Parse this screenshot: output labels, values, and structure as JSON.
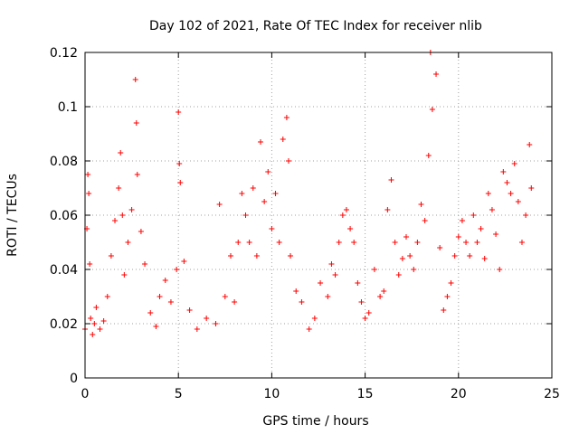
{
  "chart_data": {
    "type": "scatter",
    "title": "Day 102 of 2021, Rate Of TEC Index for receiver nlib",
    "xlabel": "GPS time / hours",
    "ylabel": "ROTI / TECUs",
    "xlim": [
      0,
      25
    ],
    "ylim": [
      0,
      0.12
    ],
    "x_ticks": [
      0,
      5,
      10,
      15,
      20,
      25
    ],
    "y_ticks": [
      0,
      0.02,
      0.04,
      0.06,
      0.08,
      0.1,
      0.12
    ],
    "x_tick_labels": [
      "0",
      "5",
      "10",
      "15",
      "20",
      "25"
    ],
    "y_tick_labels": [
      "0",
      "0.02",
      "0.04",
      "0.06",
      "0.08",
      "0.1",
      "0.12"
    ],
    "grid": true,
    "marker": "+",
    "marker_color": "#ff0000",
    "series": [
      {
        "x": [
          0.0,
          0.1,
          0.15,
          0.2,
          0.25,
          0.3,
          0.4,
          0.5,
          0.6,
          0.8,
          1.0,
          1.2,
          1.4,
          1.6,
          1.8,
          1.9,
          2.0,
          2.1,
          2.3,
          2.5,
          2.7,
          2.75,
          2.8,
          3.0,
          3.2,
          3.5,
          3.8,
          4.0,
          4.3,
          4.6,
          4.9,
          5.0,
          5.05,
          5.1,
          5.3,
          5.6,
          6.0,
          6.5,
          7.0,
          7.2,
          7.5,
          7.8,
          8.0,
          8.2,
          8.4,
          8.6,
          8.8,
          9.0,
          9.2,
          9.4,
          9.6,
          9.8,
          10.0,
          10.2,
          10.4,
          10.6,
          10.8,
          10.9,
          11.0,
          11.3,
          11.6,
          12.0,
          12.3,
          12.6,
          13.0,
          13.2,
          13.4,
          13.6,
          13.8,
          14.0,
          14.2,
          14.4,
          14.6,
          14.8,
          15.0,
          15.2,
          15.5,
          15.8,
          16.0,
          16.2,
          16.4,
          16.6,
          16.8,
          17.0,
          17.2,
          17.4,
          17.6,
          17.8,
          18.0,
          18.2,
          18.4,
          18.5,
          18.6,
          18.8,
          19.0,
          19.2,
          19.4,
          19.6,
          19.8,
          20.0,
          20.2,
          20.4,
          20.6,
          20.8,
          21.0,
          21.2,
          21.4,
          21.6,
          21.8,
          22.0,
          22.2,
          22.4,
          22.6,
          22.8,
          23.0,
          23.2,
          23.4,
          23.6,
          23.8,
          23.9
        ],
        "y": [
          0.018,
          0.055,
          0.075,
          0.068,
          0.042,
          0.022,
          0.016,
          0.02,
          0.026,
          0.018,
          0.021,
          0.03,
          0.045,
          0.058,
          0.07,
          0.083,
          0.06,
          0.038,
          0.05,
          0.062,
          0.11,
          0.094,
          0.075,
          0.054,
          0.042,
          0.024,
          0.019,
          0.03,
          0.036,
          0.028,
          0.04,
          0.098,
          0.079,
          0.072,
          0.043,
          0.025,
          0.018,
          0.022,
          0.02,
          0.064,
          0.03,
          0.045,
          0.028,
          0.05,
          0.068,
          0.06,
          0.05,
          0.07,
          0.045,
          0.087,
          0.065,
          0.076,
          0.055,
          0.068,
          0.05,
          0.088,
          0.096,
          0.08,
          0.045,
          0.032,
          0.028,
          0.018,
          0.022,
          0.035,
          0.03,
          0.042,
          0.038,
          0.05,
          0.06,
          0.062,
          0.055,
          0.05,
          0.035,
          0.028,
          0.022,
          0.024,
          0.04,
          0.03,
          0.032,
          0.062,
          0.073,
          0.05,
          0.038,
          0.044,
          0.052,
          0.045,
          0.04,
          0.05,
          0.064,
          0.058,
          0.082,
          0.12,
          0.099,
          0.112,
          0.048,
          0.025,
          0.03,
          0.035,
          0.045,
          0.052,
          0.058,
          0.05,
          0.045,
          0.06,
          0.05,
          0.055,
          0.044,
          0.068,
          0.062,
          0.053,
          0.04,
          0.076,
          0.072,
          0.068,
          0.079,
          0.065,
          0.05,
          0.06,
          0.086,
          0.07
        ]
      }
    ]
  }
}
